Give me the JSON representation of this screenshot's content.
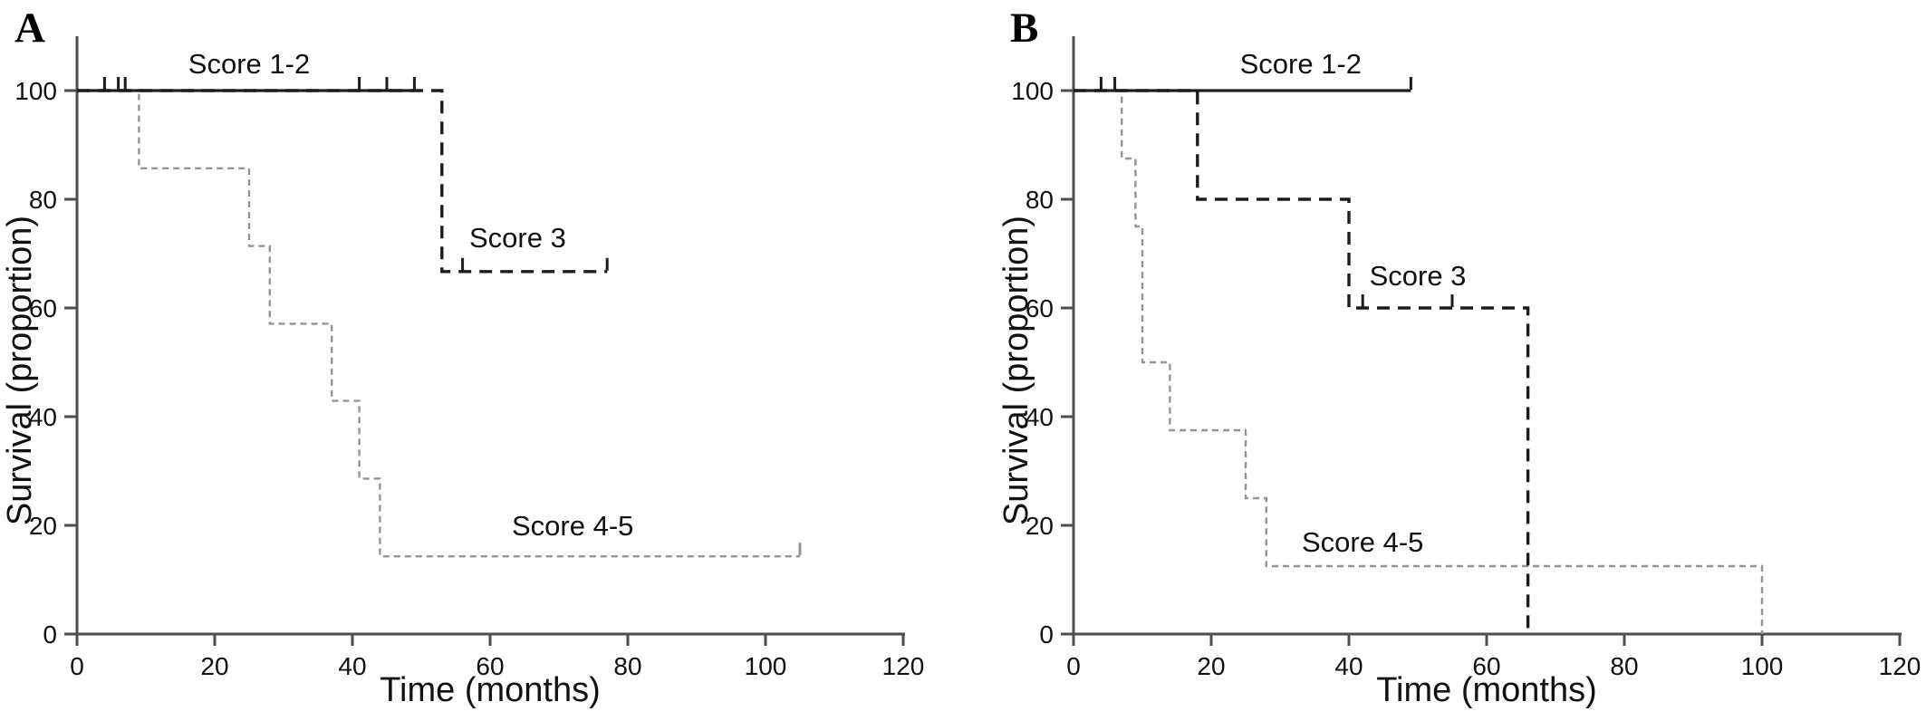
{
  "colors": {
    "series_black": "#1c1c1c",
    "series_gray": "#949494",
    "axis": "#4d4d4d",
    "text": "#111111"
  },
  "chart_data": [
    {
      "type": "line",
      "subtype": "kaplan-meier-step",
      "panel_label": "A",
      "xlabel": "Time (months)",
      "ylabel": "Survival (proportion)",
      "xlim": [
        0,
        120
      ],
      "ylim": [
        0,
        100
      ],
      "xticks": [
        0,
        20,
        40,
        60,
        80,
        100,
        120
      ],
      "yticks": [
        0,
        20,
        40,
        60,
        80,
        100
      ],
      "grid": false,
      "series": [
        {
          "name": "Score 1-2",
          "style": "solid",
          "color": "series_black",
          "points": [
            [
              0,
              100
            ],
            [
              49,
              100
            ]
          ],
          "censor_marks": [
            [
              4,
              100
            ],
            [
              6,
              100
            ],
            [
              7,
              100
            ],
            [
              41,
              100
            ],
            [
              45,
              100
            ],
            [
              49,
              100
            ]
          ],
          "label": {
            "x": 25,
            "y": 105
          }
        },
        {
          "name": "Score 3",
          "style": "dashed-bold",
          "color": "series_black",
          "points": [
            [
              0,
              100
            ],
            [
              53,
              100
            ],
            [
              53,
              66.7
            ],
            [
              77,
              66.7
            ]
          ],
          "censor_marks": [
            [
              56,
              66.7
            ],
            [
              77,
              66.7
            ]
          ],
          "label": {
            "x": 64,
            "y": 73
          }
        },
        {
          "name": "Score 4-5",
          "style": "dashed-fine",
          "color": "series_gray",
          "points": [
            [
              0,
              100
            ],
            [
              9,
              100
            ],
            [
              9,
              85.7
            ],
            [
              25,
              85.7
            ],
            [
              25,
              71.4
            ],
            [
              28,
              71.4
            ],
            [
              28,
              57.1
            ],
            [
              37,
              57.1
            ],
            [
              37,
              42.9
            ],
            [
              41,
              42.9
            ],
            [
              41,
              28.6
            ],
            [
              44,
              28.6
            ],
            [
              44,
              14.3
            ],
            [
              105,
              14.3
            ]
          ],
          "censor_marks": [
            [
              105,
              14.3
            ]
          ],
          "label": {
            "x": 72,
            "y": 20
          }
        }
      ]
    },
    {
      "type": "line",
      "subtype": "kaplan-meier-step",
      "panel_label": "B",
      "xlabel": "Time (months)",
      "ylabel": "Survival (proportion)",
      "xlim": [
        0,
        120
      ],
      "ylim": [
        0,
        100
      ],
      "xticks": [
        0,
        20,
        40,
        60,
        80,
        100,
        120
      ],
      "yticks": [
        0,
        20,
        40,
        60,
        80,
        100
      ],
      "grid": false,
      "series": [
        {
          "name": "Score 1-2",
          "style": "solid",
          "color": "series_black",
          "points": [
            [
              0,
              100
            ],
            [
              49,
              100
            ]
          ],
          "censor_marks": [
            [
              4,
              100
            ],
            [
              6,
              100
            ],
            [
              49,
              100
            ]
          ],
          "label": {
            "x": 33,
            "y": 105
          }
        },
        {
          "name": "Score 3",
          "style": "dashed-bold",
          "color": "series_black",
          "points": [
            [
              0,
              100
            ],
            [
              18,
              100
            ],
            [
              18,
              80
            ],
            [
              40,
              80
            ],
            [
              40,
              60
            ],
            [
              66,
              60
            ],
            [
              66,
              0
            ]
          ],
          "censor_marks": [
            [
              42,
              60
            ],
            [
              55,
              60
            ]
          ],
          "label": {
            "x": 50,
            "y": 66
          }
        },
        {
          "name": "Score 4-5",
          "style": "dashed-fine",
          "color": "series_gray",
          "points": [
            [
              0,
              100
            ],
            [
              7,
              100
            ],
            [
              7,
              87.5
            ],
            [
              9,
              87.5
            ],
            [
              9,
              75
            ],
            [
              10,
              75
            ],
            [
              10,
              50
            ],
            [
              14,
              50
            ],
            [
              14,
              37.5
            ],
            [
              25,
              37.5
            ],
            [
              25,
              25
            ],
            [
              28,
              25
            ],
            [
              28,
              12.5
            ],
            [
              100,
              12.5
            ],
            [
              100,
              0
            ]
          ],
          "censor_marks": [],
          "label": {
            "x": 42,
            "y": 17
          }
        }
      ]
    }
  ]
}
